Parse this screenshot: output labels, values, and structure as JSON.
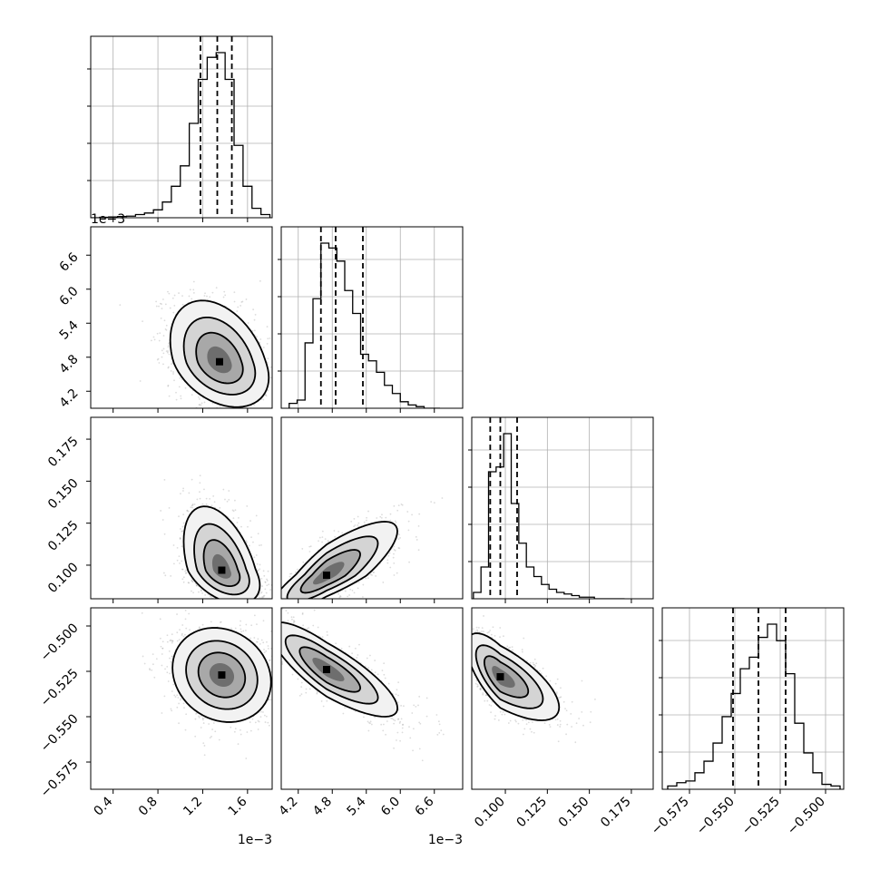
{
  "chart_data": {
    "type": "corner",
    "parameters": [
      {
        "range": [
          0.2,
          1.82
        ],
        "ticks": [
          0.4,
          0.8,
          1.2,
          1.6
        ],
        "tick_labels": [
          "0.4",
          "0.8",
          "1.2",
          "1.6"
        ],
        "offset": "1e−3",
        "quantiles": [
          1.18,
          1.33,
          1.46
        ],
        "hist": {
          "edges": [
            0.2,
            0.28,
            0.36,
            0.44,
            0.52,
            0.6,
            0.68,
            0.76,
            0.84,
            0.92,
            1.0,
            1.08,
            1.16,
            1.24,
            1.32,
            1.4,
            1.48,
            1.56,
            1.64,
            1.72,
            1.8
          ],
          "counts": [
            0.0,
            0.003,
            0.005,
            0.008,
            0.01,
            0.02,
            0.03,
            0.05,
            0.1,
            0.2,
            0.33,
            0.6,
            0.88,
            1.02,
            1.05,
            0.88,
            0.46,
            0.2,
            0.06,
            0.02
          ]
        }
      },
      {
        "range": [
          3.9,
          7.1
        ],
        "ticks": [
          4.2,
          4.8,
          5.4,
          6.0,
          6.6
        ],
        "tick_labels": [
          "4.2",
          "4.8",
          "5.4",
          "6.0",
          "6.6"
        ],
        "offset": "1e−3",
        "quantiles": [
          4.6,
          4.86,
          5.34
        ],
        "hist": {
          "edges": [
            4.04,
            4.18,
            4.32,
            4.46,
            4.6,
            4.74,
            4.88,
            5.02,
            5.16,
            5.3,
            5.44,
            5.58,
            5.72,
            5.86,
            6.0,
            6.14,
            6.28,
            6.42,
            6.56,
            6.7
          ],
          "counts": [
            0.03,
            0.05,
            0.4,
            0.67,
            1.01,
            0.98,
            0.9,
            0.72,
            0.58,
            0.33,
            0.29,
            0.22,
            0.14,
            0.09,
            0.04,
            0.02,
            0.01,
            0.0,
            0.0
          ]
        }
      },
      {
        "range": [
          0.08,
          0.188
        ],
        "ticks": [
          0.1,
          0.125,
          0.15,
          0.175
        ],
        "tick_labels": [
          "0.100",
          "0.125",
          "0.150",
          "0.175"
        ],
        "offset": "",
        "quantiles": [
          0.091,
          0.097,
          0.107
        ],
        "hist": {
          "edges": [
            0.081,
            0.0855,
            0.09,
            0.0945,
            0.099,
            0.1035,
            0.108,
            0.1125,
            0.117,
            0.1215,
            0.126,
            0.1305,
            0.135,
            0.1395,
            0.144,
            0.1485,
            0.153,
            0.1575,
            0.162,
            0.1665,
            0.171
          ],
          "counts": [
            0.04,
            0.2,
            0.8,
            0.83,
            1.04,
            0.6,
            0.35,
            0.2,
            0.14,
            0.09,
            0.06,
            0.04,
            0.03,
            0.02,
            0.01,
            0.01,
            0.0,
            0.0,
            0.0,
            0.0
          ]
        }
      },
      {
        "range": [
          -0.59,
          -0.49
        ],
        "ticks": [
          -0.575,
          -0.55,
          -0.525,
          -0.5
        ],
        "tick_labels": [
          "−0.575",
          "−0.550",
          "−0.525",
          "−0.500"
        ],
        "offset": "",
        "quantiles": [
          -0.551,
          -0.537,
          -0.522
        ],
        "hist": {
          "edges": [
            -0.587,
            -0.582,
            -0.577,
            -0.572,
            -0.567,
            -0.562,
            -0.557,
            -0.552,
            -0.547,
            -0.542,
            -0.537,
            -0.532,
            -0.527,
            -0.522,
            -0.517,
            -0.512,
            -0.507,
            -0.502,
            -0.497,
            -0.492
          ],
          "counts": [
            0.02,
            0.04,
            0.05,
            0.1,
            0.17,
            0.28,
            0.44,
            0.58,
            0.73,
            0.8,
            0.92,
            1.0,
            0.9,
            0.7,
            0.4,
            0.22,
            0.1,
            0.03,
            0.02
          ]
        }
      }
    ],
    "pairs": [
      {
        "row": 1,
        "col": 0,
        "peak": [
          1.35,
          4.72
        ],
        "sigma": [
          0.22,
          0.4
        ],
        "rho": -0.35,
        "skew": [
          0,
          0.7
        ]
      },
      {
        "row": 2,
        "col": 0,
        "peak": [
          1.37,
          0.097
        ],
        "sigma": [
          0.17,
          0.01
        ],
        "rho": -0.45,
        "skew": [
          0,
          1.8
        ]
      },
      {
        "row": 2,
        "col": 1,
        "peak": [
          4.7,
          0.094
        ],
        "sigma": [
          0.48,
          0.011
        ],
        "rho": 0.82,
        "skew": [
          0.6,
          0.9
        ]
      },
      {
        "row": 3,
        "col": 0,
        "peak": [
          1.37,
          -0.527
        ],
        "sigma": [
          0.22,
          0.013
        ],
        "rho": -0.15,
        "skew": [
          0,
          0
        ]
      },
      {
        "row": 3,
        "col": 1,
        "peak": [
          4.7,
          -0.524
        ],
        "sigma": [
          0.5,
          0.013
        ],
        "rho": -0.82,
        "skew": [
          0.5,
          0
        ]
      },
      {
        "row": 3,
        "col": 2,
        "peak": [
          0.097,
          -0.528
        ],
        "sigma": [
          0.01,
          0.012
        ],
        "rho": -0.7,
        "skew": [
          1.5,
          0
        ]
      }
    ],
    "colors": {
      "hist": "#000000",
      "points": "#9a9a9a",
      "grid": "#b0b0b0"
    },
    "grid": true,
    "legend": "none"
  }
}
